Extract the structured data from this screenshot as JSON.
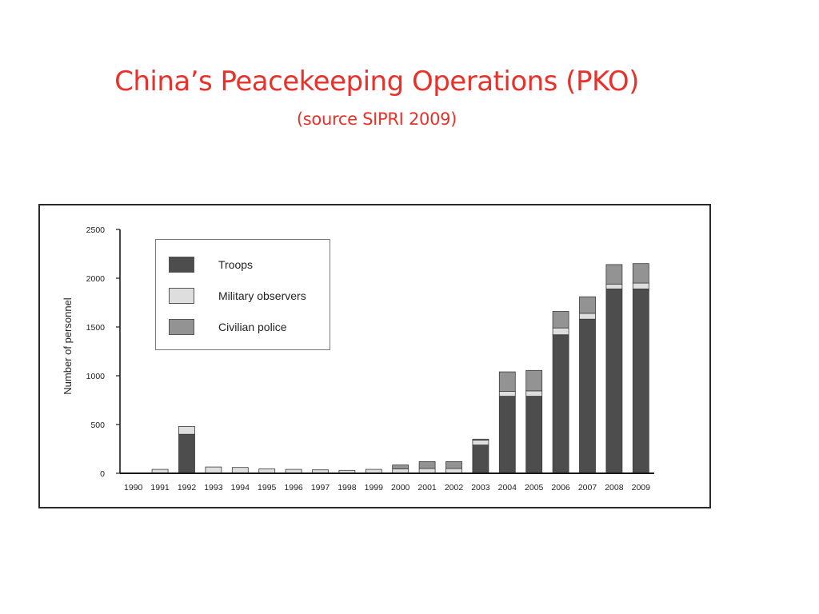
{
  "slide": {
    "title": "China’s Peacekeeping Operations (PKO)",
    "subtitle": "(source SIPRI 2009)"
  },
  "chart_data": {
    "type": "bar",
    "stacked": true,
    "ylabel": "Number of personnel",
    "xlabel": "",
    "ylim": [
      0,
      2500
    ],
    "yticks": [
      0,
      500,
      1000,
      1500,
      2000,
      2500
    ],
    "grid": false,
    "legend_position": "top-left",
    "categories": [
      "1990",
      "1991",
      "1992",
      "1993",
      "1994",
      "1995",
      "1996",
      "1997",
      "1998",
      "1999",
      "2000",
      "2001",
      "2002",
      "2003",
      "2004",
      "2005",
      "2006",
      "2007",
      "2008",
      "2009"
    ],
    "series": [
      {
        "name": "Troops",
        "color": "#4d4d4d",
        "values": [
          0,
          0,
          400,
          0,
          0,
          0,
          0,
          0,
          0,
          0,
          0,
          0,
          0,
          290,
          790,
          790,
          1420,
          1580,
          1890,
          1890
        ]
      },
      {
        "name": "Military observers",
        "color": "#dedede",
        "values": [
          5,
          40,
          80,
          65,
          60,
          45,
          40,
          35,
          30,
          40,
          45,
          50,
          50,
          50,
          50,
          55,
          70,
          60,
          50,
          60
        ]
      },
      {
        "name": "Civilian police",
        "color": "#939393",
        "values": [
          0,
          0,
          0,
          0,
          0,
          0,
          0,
          0,
          0,
          0,
          40,
          70,
          70,
          10,
          200,
          210,
          170,
          170,
          200,
          200
        ]
      }
    ]
  }
}
